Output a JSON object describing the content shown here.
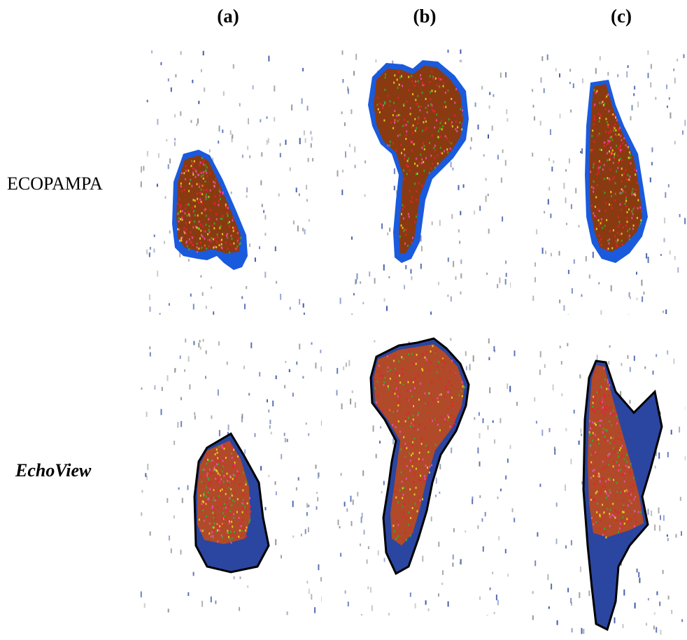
{
  "columns": [
    "(a)",
    "(b)",
    "(c)"
  ],
  "rows": [
    "ECOPAMPA",
    "EchoView"
  ],
  "colors": {
    "fill": "#8a3a10",
    "fill_echoview": "#b04a28",
    "halo": "#1a5adc",
    "speckle_red": "#e8203a",
    "speckle_pink": "#f050c0",
    "speckle_yellow": "#f0e020",
    "speckle_green": "#30b030",
    "noise_blue": "#2a46a0",
    "noise_gray": "#8a8a8a",
    "outline": "#000000"
  }
}
